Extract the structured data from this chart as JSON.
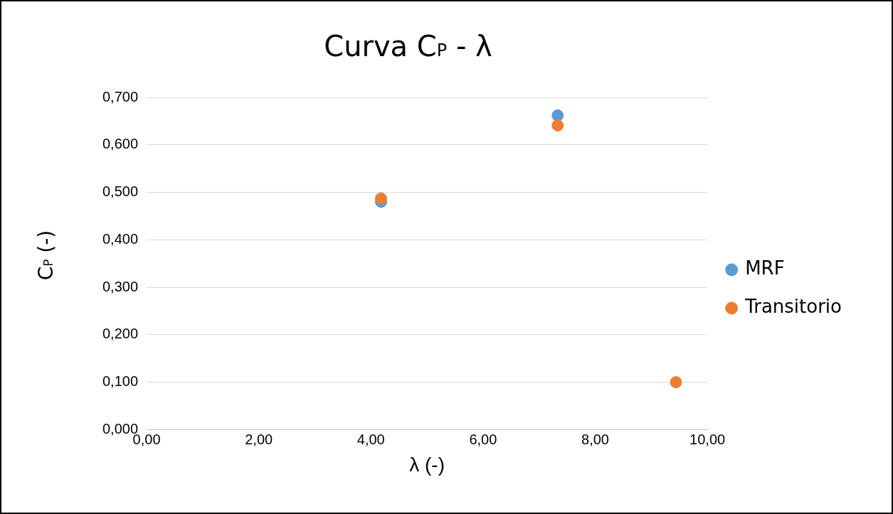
{
  "chart_data": {
    "type": "scatter",
    "title": "Curva C$_{P}$ - λ",
    "xlabel": "λ (-)",
    "ylabel": "C$_{P}$ (-)",
    "series": [
      {
        "name": "MRF",
        "color": "#5b9bd5",
        "x": [
          4.18,
          7.33
        ],
        "values": [
          0.48,
          0.662
        ]
      },
      {
        "name": "Transitorio",
        "color": "#ed7d31",
        "x": [
          4.18,
          7.33,
          9.44
        ],
        "values": [
          0.487,
          0.641,
          0.1
        ]
      }
    ],
    "xlim": [
      0,
      10
    ],
    "xticks": [
      {
        "value": 0,
        "label": "0,00"
      },
      {
        "value": 2,
        "label": "2,00"
      },
      {
        "value": 4,
        "label": "4,00"
      },
      {
        "value": 6,
        "label": "6,00"
      },
      {
        "value": 8,
        "label": "8,00"
      },
      {
        "value": 10,
        "label": "10,00"
      }
    ],
    "ylim": [
      0,
      0.7
    ],
    "yticks": [
      {
        "value": 0,
        "label": "0,000"
      },
      {
        "value": 0.1,
        "label": "0,100"
      },
      {
        "value": 0.2,
        "label": "0,200"
      },
      {
        "value": 0.3,
        "label": "0,300"
      },
      {
        "value": 0.4,
        "label": "0,400"
      },
      {
        "value": 0.5,
        "label": "0,500"
      },
      {
        "value": 0.6,
        "label": "0,600"
      },
      {
        "value": 0.7,
        "label": "0,700"
      }
    ],
    "grid": "y",
    "legend": "right",
    "marker": "circle"
  }
}
